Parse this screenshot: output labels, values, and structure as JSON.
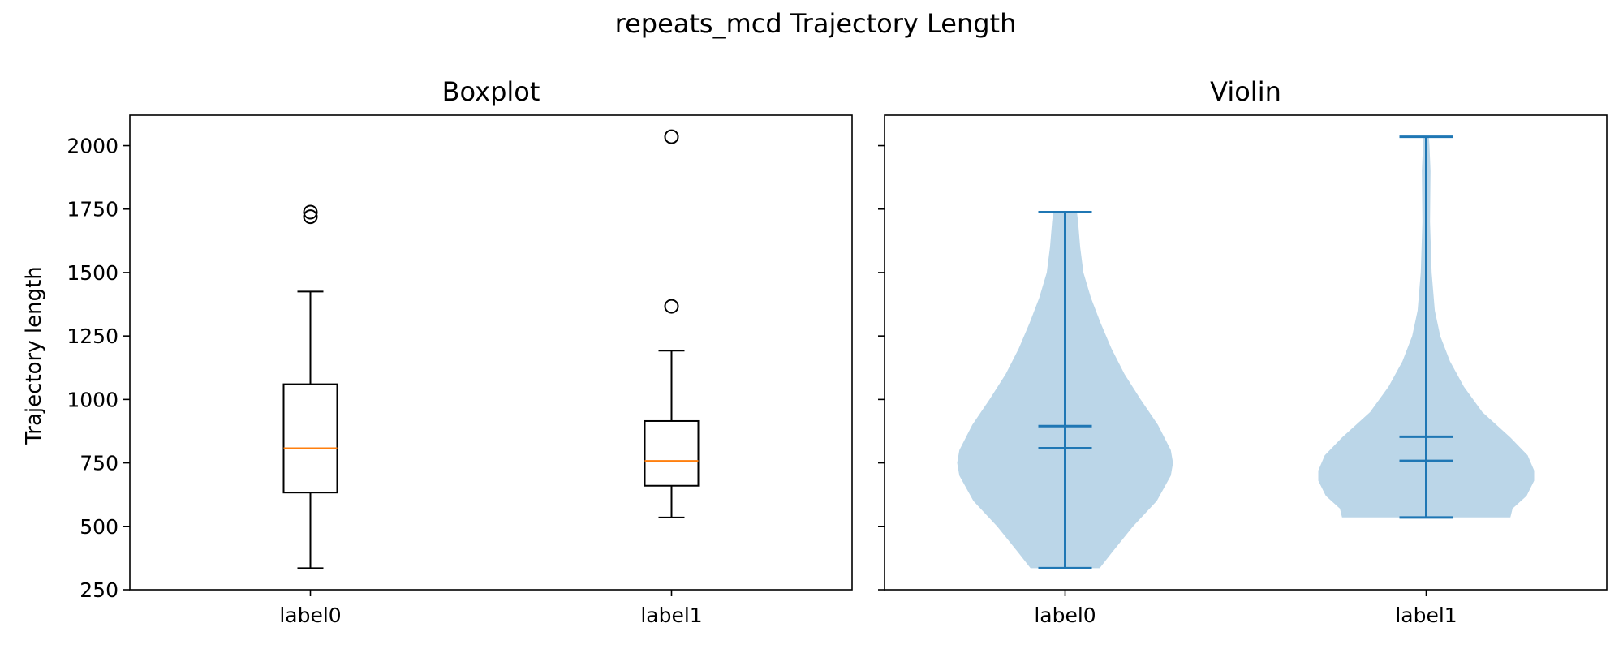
{
  "figure": {
    "title": "repeats_mcd Trajectory Length"
  },
  "chart_data": [
    {
      "type": "box",
      "title": "Boxplot",
      "xlabel": "",
      "ylabel": "Trajectory length",
      "categories": [
        "label0",
        "label1"
      ],
      "ylim": [
        250,
        2120
      ],
      "yticks": [
        250,
        500,
        750,
        1000,
        1250,
        1500,
        1750,
        2000
      ],
      "ytick_labels": [
        "250",
        "500",
        "750",
        "1000",
        "1250",
        "1500",
        "1750",
        "2000"
      ],
      "grid": false,
      "series": [
        {
          "category": "label0",
          "whisker_low": 335,
          "q1": 633,
          "median": 808,
          "q3": 1060,
          "whisker_high": 1425,
          "outliers": [
            1720,
            1738
          ]
        },
        {
          "category": "label1",
          "whisker_low": 535,
          "q1": 660,
          "median": 758,
          "q3": 915,
          "whisker_high": 1192,
          "outliers": [
            1367,
            2035
          ]
        }
      ],
      "colors": {
        "box": "#000000",
        "median": "#ff7f0e"
      }
    },
    {
      "type": "violin",
      "title": "Violin",
      "xlabel": "",
      "ylabel": "",
      "categories": [
        "label0",
        "label1"
      ],
      "ylim": [
        250,
        2120
      ],
      "yticks": [
        250,
        500,
        750,
        1000,
        1250,
        1500,
        1750,
        2000
      ],
      "shared_y": true,
      "grid": false,
      "series": [
        {
          "category": "label0",
          "min": 335,
          "max": 1738,
          "mean": 895,
          "median": 808,
          "density": [
            [
              335,
              0.32
            ],
            [
              400,
              0.44
            ],
            [
              500,
              0.63
            ],
            [
              600,
              0.85
            ],
            [
              700,
              0.98
            ],
            [
              750,
              1.0
            ],
            [
              800,
              0.98
            ],
            [
              900,
              0.86
            ],
            [
              1000,
              0.7
            ],
            [
              1100,
              0.55
            ],
            [
              1200,
              0.43
            ],
            [
              1300,
              0.33
            ],
            [
              1400,
              0.24
            ],
            [
              1500,
              0.17
            ],
            [
              1600,
              0.14
            ],
            [
              1700,
              0.12
            ],
            [
              1738,
              0.11
            ]
          ]
        },
        {
          "category": "label1",
          "min": 535,
          "max": 2035,
          "mean": 853,
          "median": 758,
          "density": [
            [
              535,
              0.78
            ],
            [
              570,
              0.8
            ],
            [
              620,
              0.93
            ],
            [
              680,
              1.0
            ],
            [
              720,
              1.0
            ],
            [
              780,
              0.94
            ],
            [
              850,
              0.78
            ],
            [
              950,
              0.52
            ],
            [
              1050,
              0.35
            ],
            [
              1150,
              0.22
            ],
            [
              1250,
              0.13
            ],
            [
              1350,
              0.08
            ],
            [
              1500,
              0.05
            ],
            [
              1700,
              0.035
            ],
            [
              1900,
              0.04
            ],
            [
              2000,
              0.03
            ],
            [
              2035,
              0.025
            ]
          ]
        }
      ],
      "colors": {
        "body": "#1f77b4",
        "body_alpha": 0.3,
        "lines": "#1f77b4"
      }
    }
  ]
}
